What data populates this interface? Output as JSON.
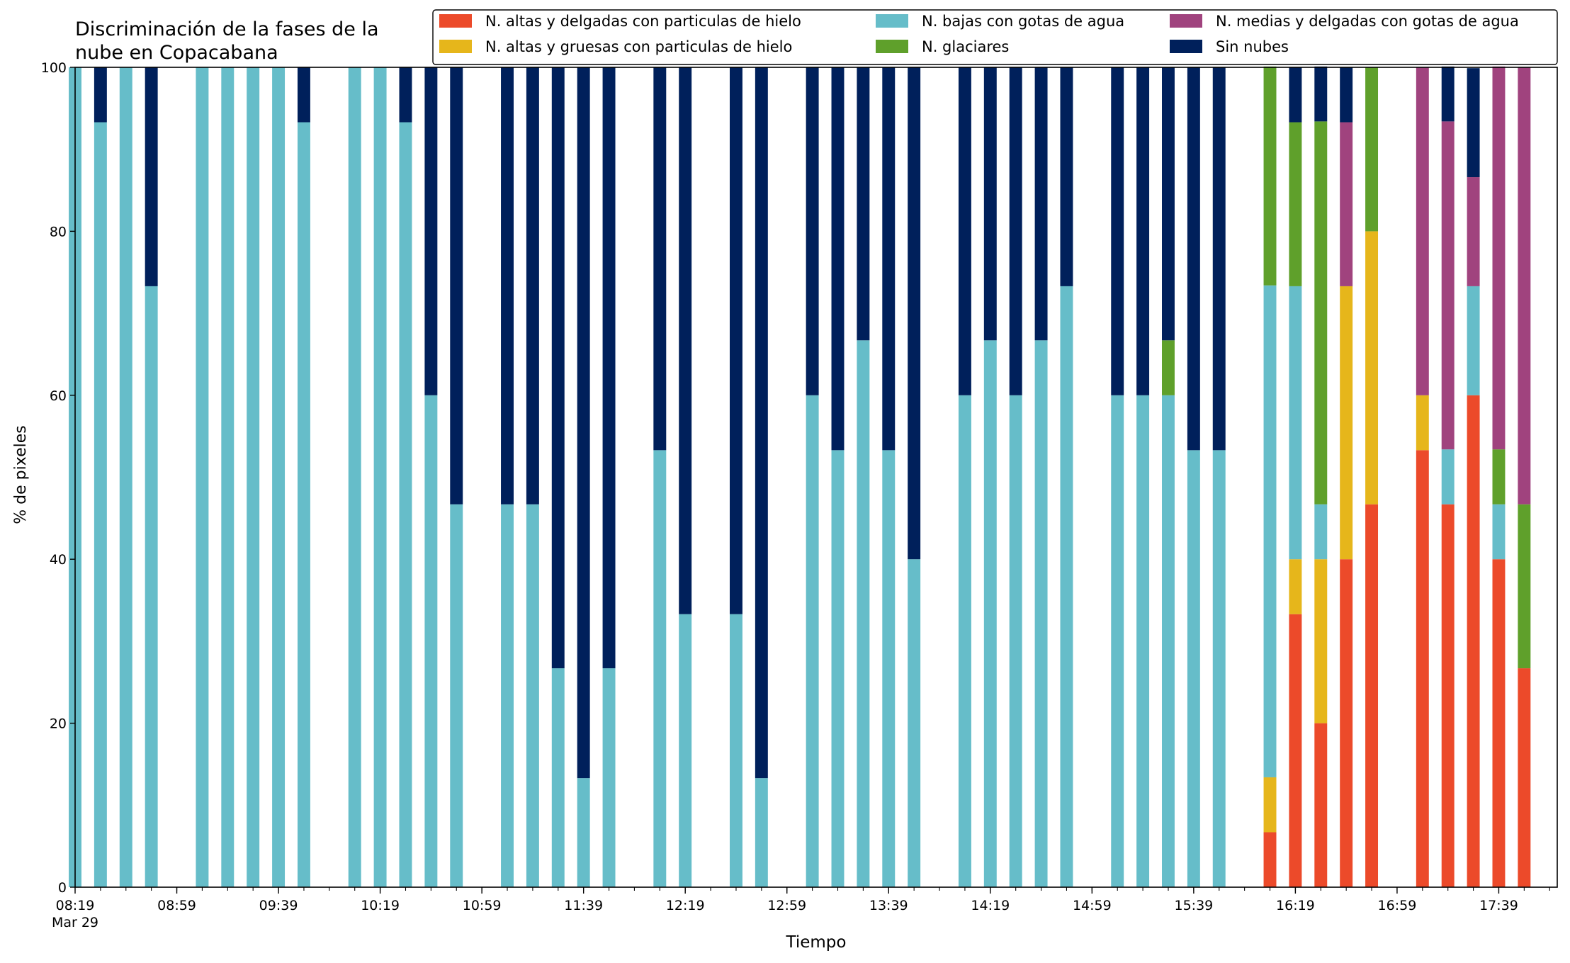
{
  "chart_data": {
    "type": "bar",
    "stacked": true,
    "title_lines": [
      "Discriminación de la fases de la",
      "nube en Copacabana"
    ],
    "xlabel": "Tiempo",
    "ylabel": "% de pixeles",
    "ylim": [
      0,
      100
    ],
    "yticks": [
      "0",
      "20",
      "40",
      "60",
      "80",
      "100"
    ],
    "xticks": [
      "08:19",
      "08:59",
      "09:39",
      "10:19",
      "10:59",
      "11:39",
      "12:19",
      "12:59",
      "13:39",
      "14:19",
      "14:59",
      "15:39",
      "16:19",
      "16:59",
      "17:39"
    ],
    "xtick_sublabel": "Mar 29",
    "grid": false,
    "legend_position": "top-right",
    "time_start": "08:19",
    "time_end": "18:02",
    "bar_width_minutes": 5,
    "colors": {
      "altas_delgadas_hielo": "#ec4a2a",
      "altas_gruesas_hielo": "#e6b61b",
      "bajas_agua": "#66bdc9",
      "glaciares": "#5fa02b",
      "medias_delgadas_agua": "#a0437e",
      "sin_nubes": "#00205b"
    },
    "legend": [
      {
        "key": "altas_delgadas_hielo",
        "label": "N. altas y delgadas con particulas de hielo"
      },
      {
        "key": "altas_gruesas_hielo",
        "label": "N. altas y gruesas con particulas de hielo"
      },
      {
        "key": "bajas_agua",
        "label": "N. bajas con gotas de agua"
      },
      {
        "key": "glaciares",
        "label": "N. glaciares"
      },
      {
        "key": "medias_delgadas_agua",
        "label": "N. medias y delgadas con gotas de agua"
      },
      {
        "key": "sin_nubes",
        "label": "Sin nubes"
      }
    ],
    "series_order": [
      "altas_delgadas_hielo",
      "altas_gruesas_hielo",
      "bajas_agua",
      "glaciares",
      "medias_delgadas_agua",
      "sin_nubes"
    ],
    "bars": [
      {
        "time": "08:19",
        "altas_delgadas_hielo": 0,
        "altas_gruesas_hielo": 0,
        "bajas_agua": 100,
        "glaciares": 0,
        "medias_delgadas_agua": 0,
        "sin_nubes": 0
      },
      {
        "time": "08:29",
        "altas_delgadas_hielo": 0,
        "altas_gruesas_hielo": 0,
        "bajas_agua": 93.3,
        "glaciares": 0,
        "medias_delgadas_agua": 0,
        "sin_nubes": 6.7
      },
      {
        "time": "08:39",
        "altas_delgadas_hielo": 0,
        "altas_gruesas_hielo": 0,
        "bajas_agua": 100,
        "glaciares": 0,
        "medias_delgadas_agua": 0,
        "sin_nubes": 0
      },
      {
        "time": "08:49",
        "altas_delgadas_hielo": 0,
        "altas_gruesas_hielo": 0,
        "bajas_agua": 73.3,
        "glaciares": 0,
        "medias_delgadas_agua": 0,
        "sin_nubes": 26.7
      },
      {
        "time": "09:09",
        "altas_delgadas_hielo": 0,
        "altas_gruesas_hielo": 0,
        "bajas_agua": 100,
        "glaciares": 0,
        "medias_delgadas_agua": 0,
        "sin_nubes": 0
      },
      {
        "time": "09:19",
        "altas_delgadas_hielo": 0,
        "altas_gruesas_hielo": 0,
        "bajas_agua": 100,
        "glaciares": 0,
        "medias_delgadas_agua": 0,
        "sin_nubes": 0
      },
      {
        "time": "09:29",
        "altas_delgadas_hielo": 0,
        "altas_gruesas_hielo": 0,
        "bajas_agua": 100,
        "glaciares": 0,
        "medias_delgadas_agua": 0,
        "sin_nubes": 0
      },
      {
        "time": "09:39",
        "altas_delgadas_hielo": 0,
        "altas_gruesas_hielo": 0,
        "bajas_agua": 100,
        "glaciares": 0,
        "medias_delgadas_agua": 0,
        "sin_nubes": 0
      },
      {
        "time": "09:49",
        "altas_delgadas_hielo": 0,
        "altas_gruesas_hielo": 0,
        "bajas_agua": 93.3,
        "glaciares": 0,
        "medias_delgadas_agua": 0,
        "sin_nubes": 6.7
      },
      {
        "time": "10:09",
        "altas_delgadas_hielo": 0,
        "altas_gruesas_hielo": 0,
        "bajas_agua": 100,
        "glaciares": 0,
        "medias_delgadas_agua": 0,
        "sin_nubes": 0
      },
      {
        "time": "10:19",
        "altas_delgadas_hielo": 0,
        "altas_gruesas_hielo": 0,
        "bajas_agua": 100,
        "glaciares": 0,
        "medias_delgadas_agua": 0,
        "sin_nubes": 0
      },
      {
        "time": "10:29",
        "altas_delgadas_hielo": 0,
        "altas_gruesas_hielo": 0,
        "bajas_agua": 93.3,
        "glaciares": 0,
        "medias_delgadas_agua": 0,
        "sin_nubes": 6.7
      },
      {
        "time": "10:39",
        "altas_delgadas_hielo": 0,
        "altas_gruesas_hielo": 0,
        "bajas_agua": 60,
        "glaciares": 0,
        "medias_delgadas_agua": 0,
        "sin_nubes": 40
      },
      {
        "time": "10:49",
        "altas_delgadas_hielo": 0,
        "altas_gruesas_hielo": 0,
        "bajas_agua": 46.7,
        "glaciares": 0,
        "medias_delgadas_agua": 0,
        "sin_nubes": 53.3
      },
      {
        "time": "11:09",
        "altas_delgadas_hielo": 0,
        "altas_gruesas_hielo": 0,
        "bajas_agua": 46.7,
        "glaciares": 0,
        "medias_delgadas_agua": 0,
        "sin_nubes": 53.3
      },
      {
        "time": "11:19",
        "altas_delgadas_hielo": 0,
        "altas_gruesas_hielo": 0,
        "bajas_agua": 46.7,
        "glaciares": 0,
        "medias_delgadas_agua": 0,
        "sin_nubes": 53.3
      },
      {
        "time": "11:29",
        "altas_delgadas_hielo": 0,
        "altas_gruesas_hielo": 0,
        "bajas_agua": 26.7,
        "glaciares": 0,
        "medias_delgadas_agua": 0,
        "sin_nubes": 73.3
      },
      {
        "time": "11:39",
        "altas_delgadas_hielo": 0,
        "altas_gruesas_hielo": 0,
        "bajas_agua": 13.3,
        "glaciares": 0,
        "medias_delgadas_agua": 0,
        "sin_nubes": 86.7
      },
      {
        "time": "11:49",
        "altas_delgadas_hielo": 0,
        "altas_gruesas_hielo": 0,
        "bajas_agua": 26.7,
        "glaciares": 0,
        "medias_delgadas_agua": 0,
        "sin_nubes": 73.3
      },
      {
        "time": "12:09",
        "altas_delgadas_hielo": 0,
        "altas_gruesas_hielo": 0,
        "bajas_agua": 53.3,
        "glaciares": 0,
        "medias_delgadas_agua": 0,
        "sin_nubes": 46.7
      },
      {
        "time": "12:19",
        "altas_delgadas_hielo": 0,
        "altas_gruesas_hielo": 0,
        "bajas_agua": 33.3,
        "glaciares": 0,
        "medias_delgadas_agua": 0,
        "sin_nubes": 66.7
      },
      {
        "time": "12:39",
        "altas_delgadas_hielo": 0,
        "altas_gruesas_hielo": 0,
        "bajas_agua": 33.3,
        "glaciares": 0,
        "medias_delgadas_agua": 0,
        "sin_nubes": 66.7
      },
      {
        "time": "12:49",
        "altas_delgadas_hielo": 0,
        "altas_gruesas_hielo": 0,
        "bajas_agua": 13.3,
        "glaciares": 0,
        "medias_delgadas_agua": 0,
        "sin_nubes": 86.7
      },
      {
        "time": "13:09",
        "altas_delgadas_hielo": 0,
        "altas_gruesas_hielo": 0,
        "bajas_agua": 60,
        "glaciares": 0,
        "medias_delgadas_agua": 0,
        "sin_nubes": 40
      },
      {
        "time": "13:19",
        "altas_delgadas_hielo": 0,
        "altas_gruesas_hielo": 0,
        "bajas_agua": 53.3,
        "glaciares": 0,
        "medias_delgadas_agua": 0,
        "sin_nubes": 46.7
      },
      {
        "time": "13:29",
        "altas_delgadas_hielo": 0,
        "altas_gruesas_hielo": 0,
        "bajas_agua": 66.7,
        "glaciares": 0,
        "medias_delgadas_agua": 0,
        "sin_nubes": 33.3
      },
      {
        "time": "13:39",
        "altas_delgadas_hielo": 0,
        "altas_gruesas_hielo": 0,
        "bajas_agua": 53.3,
        "glaciares": 0,
        "medias_delgadas_agua": 0,
        "sin_nubes": 46.7
      },
      {
        "time": "13:49",
        "altas_delgadas_hielo": 0,
        "altas_gruesas_hielo": 0,
        "bajas_agua": 40,
        "glaciares": 0,
        "medias_delgadas_agua": 0,
        "sin_nubes": 60
      },
      {
        "time": "14:09",
        "altas_delgadas_hielo": 0,
        "altas_gruesas_hielo": 0,
        "bajas_agua": 60,
        "glaciares": 0,
        "medias_delgadas_agua": 0,
        "sin_nubes": 40
      },
      {
        "time": "14:19",
        "altas_delgadas_hielo": 0,
        "altas_gruesas_hielo": 0,
        "bajas_agua": 66.7,
        "glaciares": 0,
        "medias_delgadas_agua": 0,
        "sin_nubes": 33.3
      },
      {
        "time": "14:29",
        "altas_delgadas_hielo": 0,
        "altas_gruesas_hielo": 0,
        "bajas_agua": 60,
        "glaciares": 0,
        "medias_delgadas_agua": 0,
        "sin_nubes": 40
      },
      {
        "time": "14:39",
        "altas_delgadas_hielo": 0,
        "altas_gruesas_hielo": 0,
        "bajas_agua": 66.7,
        "glaciares": 0,
        "medias_delgadas_agua": 0,
        "sin_nubes": 33.3
      },
      {
        "time": "14:49",
        "altas_delgadas_hielo": 0,
        "altas_gruesas_hielo": 0,
        "bajas_agua": 73.3,
        "glaciares": 0,
        "medias_delgadas_agua": 0,
        "sin_nubes": 26.7
      },
      {
        "time": "15:09",
        "altas_delgadas_hielo": 0,
        "altas_gruesas_hielo": 0,
        "bajas_agua": 60,
        "glaciares": 0,
        "medias_delgadas_agua": 0,
        "sin_nubes": 40
      },
      {
        "time": "15:19",
        "altas_delgadas_hielo": 0,
        "altas_gruesas_hielo": 0,
        "bajas_agua": 60,
        "glaciares": 0,
        "medias_delgadas_agua": 0,
        "sin_nubes": 40
      },
      {
        "time": "15:29",
        "altas_delgadas_hielo": 0,
        "altas_gruesas_hielo": 0,
        "bajas_agua": 60,
        "glaciares": 6.7,
        "medias_delgadas_agua": 0,
        "sin_nubes": 33.3
      },
      {
        "time": "15:39",
        "altas_delgadas_hielo": 0,
        "altas_gruesas_hielo": 0,
        "bajas_agua": 53.3,
        "glaciares": 0,
        "medias_delgadas_agua": 0,
        "sin_nubes": 46.7
      },
      {
        "time": "15:49",
        "altas_delgadas_hielo": 0,
        "altas_gruesas_hielo": 0,
        "bajas_agua": 53.3,
        "glaciares": 0,
        "medias_delgadas_agua": 0,
        "sin_nubes": 46.7
      },
      {
        "time": "16:09",
        "altas_delgadas_hielo": 6.7,
        "altas_gruesas_hielo": 6.7,
        "bajas_agua": 60,
        "glaciares": 26.7,
        "medias_delgadas_agua": 0,
        "sin_nubes": 0
      },
      {
        "time": "16:19",
        "altas_delgadas_hielo": 33.3,
        "altas_gruesas_hielo": 6.7,
        "bajas_agua": 33.3,
        "glaciares": 20,
        "medias_delgadas_agua": 0,
        "sin_nubes": 6.7
      },
      {
        "time": "16:29",
        "altas_delgadas_hielo": 20,
        "altas_gruesas_hielo": 20,
        "bajas_agua": 6.7,
        "glaciares": 46.7,
        "medias_delgadas_agua": 0,
        "sin_nubes": 6.7
      },
      {
        "time": "16:39",
        "altas_delgadas_hielo": 40,
        "altas_gruesas_hielo": 33.3,
        "bajas_agua": 0,
        "glaciares": 0,
        "medias_delgadas_agua": 20,
        "sin_nubes": 6.7
      },
      {
        "time": "16:49",
        "altas_delgadas_hielo": 46.7,
        "altas_gruesas_hielo": 33.3,
        "bajas_agua": 0,
        "glaciares": 20,
        "medias_delgadas_agua": 0,
        "sin_nubes": 0
      },
      {
        "time": "17:09",
        "altas_delgadas_hielo": 53.3,
        "altas_gruesas_hielo": 6.7,
        "bajas_agua": 0,
        "glaciares": 0,
        "medias_delgadas_agua": 40,
        "sin_nubes": 0
      },
      {
        "time": "17:19",
        "altas_delgadas_hielo": 46.7,
        "altas_gruesas_hielo": 0,
        "bajas_agua": 6.7,
        "glaciares": 0,
        "medias_delgadas_agua": 40,
        "sin_nubes": 6.7
      },
      {
        "time": "17:29",
        "altas_delgadas_hielo": 60,
        "altas_gruesas_hielo": 0,
        "bajas_agua": 13.3,
        "glaciares": 0,
        "medias_delgadas_agua": 13.3,
        "sin_nubes": 13.3
      },
      {
        "time": "17:39",
        "altas_delgadas_hielo": 40,
        "altas_gruesas_hielo": 0,
        "bajas_agua": 6.7,
        "glaciares": 6.7,
        "medias_delgadas_agua": 46.7,
        "sin_nubes": 0
      },
      {
        "time": "17:49",
        "altas_delgadas_hielo": 26.7,
        "altas_gruesas_hielo": 0,
        "bajas_agua": 0,
        "glaciares": 20,
        "medias_delgadas_agua": 53.3,
        "sin_nubes": 0
      }
    ]
  }
}
